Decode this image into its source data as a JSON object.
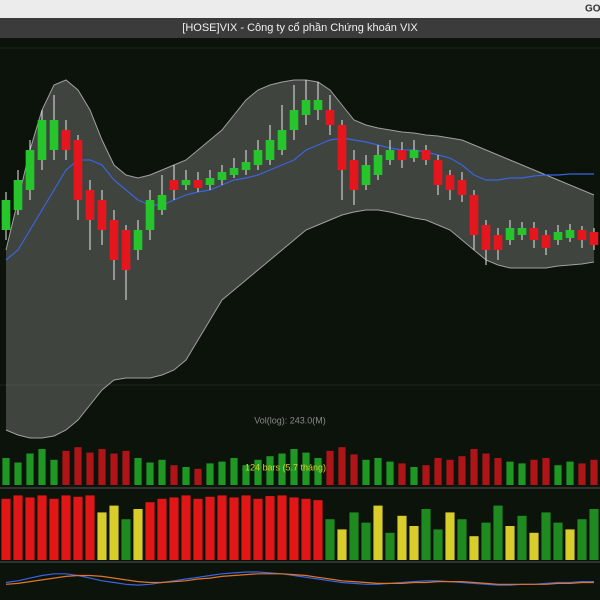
{
  "window": {
    "title": "[HOSE]VIX - Công ty cổ phần Chứng khoán VIX",
    "corner_label": "GO"
  },
  "chart_data": {
    "type": "candlestick",
    "ylim": [
      0,
      380
    ],
    "up_color": "#27c52c",
    "down_color": "#e5161d",
    "open": [
      210,
      230,
      250,
      280,
      290,
      310,
      300,
      250,
      240,
      220,
      210,
      190,
      210,
      230,
      260,
      255,
      260,
      255,
      260,
      265,
      270,
      275,
      280,
      290,
      310,
      325,
      330,
      330,
      315,
      280,
      255,
      265,
      280,
      290,
      282,
      290,
      280,
      265,
      260,
      245,
      215,
      205,
      200,
      205,
      212,
      205,
      200,
      202,
      210,
      208
    ],
    "high": [
      248,
      270,
      300,
      330,
      345,
      320,
      305,
      260,
      250,
      230,
      215,
      220,
      250,
      265,
      275,
      270,
      268,
      270,
      275,
      282,
      290,
      300,
      315,
      335,
      355,
      360,
      358,
      345,
      320,
      290,
      285,
      295,
      300,
      298,
      300,
      295,
      285,
      270,
      268,
      250,
      220,
      212,
      220,
      218,
      218,
      210,
      215,
      216,
      214,
      212
    ],
    "low": [
      200,
      225,
      240,
      270,
      280,
      280,
      220,
      190,
      195,
      160,
      140,
      180,
      200,
      225,
      240,
      250,
      248,
      250,
      255,
      262,
      265,
      270,
      275,
      285,
      300,
      315,
      320,
      305,
      240,
      235,
      250,
      260,
      275,
      272,
      278,
      275,
      245,
      240,
      238,
      190,
      175,
      180,
      195,
      200,
      192,
      185,
      195,
      198,
      192,
      190
    ],
    "close": [
      240,
      260,
      290,
      320,
      320,
      290,
      240,
      220,
      210,
      180,
      170,
      210,
      240,
      245,
      250,
      260,
      252,
      262,
      268,
      272,
      278,
      290,
      300,
      310,
      330,
      340,
      340,
      315,
      270,
      250,
      275,
      285,
      290,
      280,
      290,
      280,
      255,
      250,
      245,
      205,
      190,
      190,
      212,
      212,
      200,
      192,
      208,
      210,
      200,
      195
    ],
    "bands": {
      "color": "#a0a0a0",
      "upper": [
        190,
        240,
        290,
        330,
        355,
        360,
        350,
        330,
        300,
        275,
        265,
        262,
        265,
        270,
        275,
        280,
        290,
        300,
        310,
        325,
        340,
        350,
        355,
        358,
        360,
        360,
        358,
        350,
        335,
        320,
        315,
        312,
        310,
        308,
        307,
        305,
        304,
        302,
        300,
        295,
        290,
        285,
        280,
        275,
        270,
        265,
        260,
        255,
        250,
        245
      ],
      "lower": [
        10,
        5,
        2,
        2,
        4,
        10,
        20,
        35,
        50,
        60,
        62,
        62,
        62,
        65,
        70,
        80,
        100,
        120,
        140,
        150,
        160,
        170,
        180,
        190,
        200,
        210,
        215,
        220,
        225,
        228,
        230,
        230,
        228,
        225,
        222,
        220,
        215,
        210,
        200,
        190,
        180,
        175,
        172,
        172,
        172,
        172,
        174,
        175,
        176,
        178
      ]
    },
    "ma": {
      "color": "#3a64e0",
      "values": [
        180,
        190,
        210,
        230,
        250,
        270,
        280,
        280,
        275,
        260,
        250,
        240,
        235,
        235,
        240,
        245,
        248,
        250,
        255,
        260,
        262,
        265,
        270,
        275,
        280,
        290,
        295,
        300,
        302,
        300,
        298,
        295,
        292,
        290,
        290,
        288,
        285,
        282,
        275,
        265,
        260,
        260,
        262,
        262,
        264,
        265,
        265,
        266,
        266,
        266
      ]
    },
    "volume": {
      "label": "Vol(log): 243.0(M)",
      "ylim": [
        0,
        50
      ],
      "values": [
        30,
        25,
        35,
        40,
        28,
        38,
        42,
        36,
        40,
        35,
        38,
        30,
        25,
        28,
        22,
        20,
        18,
        24,
        26,
        30,
        22,
        28,
        32,
        35,
        40,
        36,
        30,
        38,
        42,
        34,
        28,
        30,
        26,
        24,
        20,
        22,
        30,
        28,
        32,
        40,
        35,
        30,
        26,
        24,
        28,
        30,
        22,
        26,
        24,
        28
      ]
    },
    "range_note": "124 bars (5.7 tháng)",
    "indicator": {
      "ylim": [
        0,
        100
      ],
      "values": [
        90,
        95,
        92,
        95,
        90,
        95,
        93,
        95,
        70,
        80,
        60,
        75,
        85,
        90,
        92,
        95,
        90,
        93,
        95,
        92,
        95,
        90,
        94,
        95,
        92,
        90,
        88,
        60,
        45,
        70,
        55,
        80,
        40,
        65,
        50,
        75,
        45,
        70,
        60,
        35,
        55,
        80,
        50,
        65,
        40,
        70,
        55,
        45,
        60,
        75
      ],
      "colors": [
        "#e11616",
        "#e11616",
        "#e11616",
        "#e11616",
        "#e11616",
        "#e11616",
        "#e11616",
        "#e11616",
        "#d9cd2c",
        "#d9cd2c",
        "#1f8a1f",
        "#d9cd2c",
        "#e11616",
        "#e11616",
        "#e11616",
        "#e11616",
        "#e11616",
        "#e11616",
        "#e11616",
        "#e11616",
        "#e11616",
        "#e11616",
        "#e11616",
        "#e11616",
        "#e11616",
        "#e11616",
        "#e11616",
        "#1f8a1f",
        "#d9cd2c",
        "#1f8a1f",
        "#1f8a1f",
        "#d9cd2c",
        "#1f8a1f",
        "#d9cd2c",
        "#d9cd2c",
        "#1f8a1f",
        "#1f8a1f",
        "#d9cd2c",
        "#1f8a1f",
        "#d9cd2c",
        "#1f8a1f",
        "#1f8a1f",
        "#d9cd2c",
        "#1f8a1f",
        "#d9cd2c",
        "#1f8a1f",
        "#1f8a1f",
        "#d9cd2c",
        "#1f8a1f",
        "#1f8a1f"
      ]
    },
    "oscillator": {
      "ylim": [
        0,
        40
      ],
      "series": [
        {
          "color": "#3a64e0",
          "values": [
            20,
            22,
            25,
            28,
            30,
            30,
            28,
            25,
            22,
            20,
            18,
            17,
            18,
            20,
            22,
            24,
            26,
            28,
            30,
            31,
            32,
            32,
            31,
            30,
            28,
            26,
            24,
            22,
            20,
            19,
            18,
            18,
            19,
            20,
            21,
            22,
            22,
            21,
            20,
            19,
            18,
            17,
            17,
            18,
            18,
            19,
            20,
            20,
            21,
            21
          ]
        },
        {
          "color": "#e0752a",
          "values": [
            18,
            19,
            21,
            23,
            25,
            27,
            28,
            28,
            27,
            25,
            23,
            21,
            20,
            20,
            21,
            22,
            24,
            25,
            27,
            28,
            29,
            30,
            30,
            30,
            29,
            28,
            26,
            24,
            22,
            21,
            20,
            19,
            19,
            19,
            20,
            20,
            21,
            21,
            21,
            20,
            19,
            18,
            18,
            18,
            18,
            18,
            19,
            19,
            20,
            20
          ]
        }
      ]
    }
  }
}
